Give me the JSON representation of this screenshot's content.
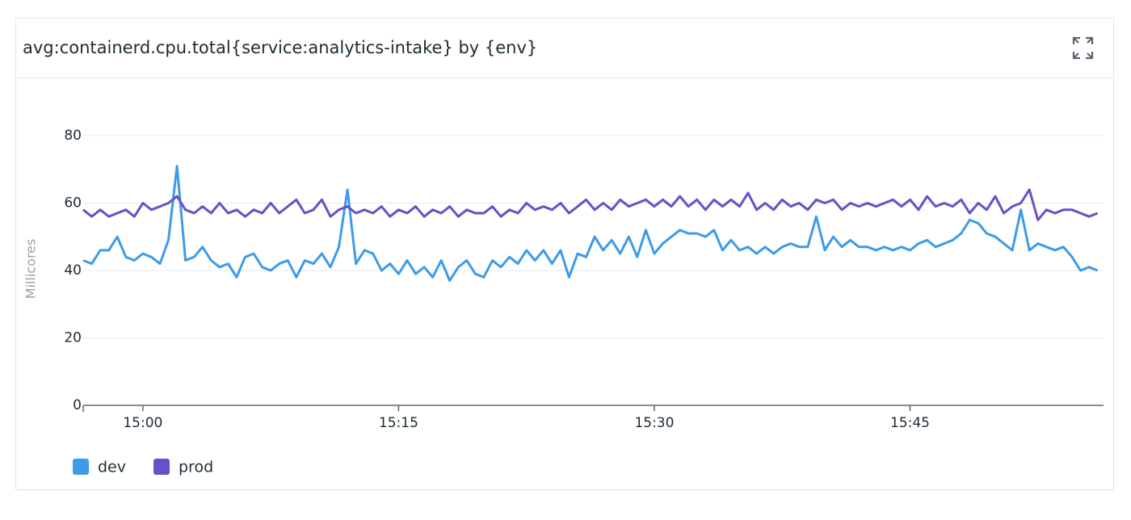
{
  "chart_data": {
    "type": "line",
    "title": "avg:containerd.cpu.total{service:analytics-intake} by {env}",
    "y_label": "Millicores",
    "x": [
      896.5,
      897,
      897.5,
      898,
      898.5,
      899,
      899.5,
      900,
      900.5,
      901,
      901.5,
      902,
      902.5,
      903,
      903.5,
      904,
      904.5,
      905,
      905.5,
      906,
      906.5,
      907,
      907.5,
      908,
      908.5,
      909,
      909.5,
      910,
      910.5,
      911,
      911.5,
      912,
      912.5,
      913,
      913.5,
      914,
      914.5,
      915,
      915.5,
      916,
      916.5,
      917,
      917.5,
      918,
      918.5,
      919,
      919.5,
      920,
      920.5,
      921,
      921.5,
      922,
      922.5,
      923,
      923.5,
      924,
      924.5,
      925,
      925.5,
      926,
      926.5,
      927,
      927.5,
      928,
      928.5,
      929,
      929.5,
      930,
      930.5,
      931,
      931.5,
      932,
      932.5,
      933,
      933.5,
      934,
      934.5,
      935,
      935.5,
      936,
      936.5,
      937,
      937.5,
      938,
      938.5,
      939,
      939.5,
      940,
      940.5,
      941,
      941.5,
      942,
      942.5,
      943,
      943.5,
      944,
      944.5,
      945,
      945.5,
      946,
      946.5,
      947,
      947.5,
      948,
      948.5,
      949,
      949.5,
      950,
      950.5,
      951,
      951.5,
      952,
      952.5,
      953,
      953.5,
      954,
      954.5,
      955,
      955.5,
      956
    ],
    "series": [
      {
        "name": "dev",
        "color": "#3d9be9",
        "values": [
          43,
          42,
          46,
          46,
          50,
          44,
          43,
          45,
          44,
          42,
          49,
          71,
          43,
          44,
          47,
          43,
          41,
          42,
          38,
          44,
          45,
          41,
          40,
          42,
          43,
          38,
          43,
          42,
          45,
          41,
          47,
          64,
          42,
          46,
          45,
          40,
          42,
          39,
          43,
          39,
          41,
          38,
          43,
          37,
          41,
          43,
          39,
          38,
          43,
          41,
          44,
          42,
          46,
          43,
          46,
          42,
          46,
          38,
          45,
          44,
          50,
          46,
          49,
          45,
          50,
          44,
          52,
          45,
          48,
          50,
          52,
          51,
          51,
          50,
          52,
          46,
          49,
          46,
          47,
          45,
          47,
          45,
          47,
          48,
          47,
          47,
          56,
          46,
          50,
          47,
          49,
          47,
          47,
          46,
          47,
          46,
          47,
          46,
          48,
          49,
          47,
          48,
          49,
          51,
          55,
          54,
          51,
          50,
          48,
          46,
          58,
          46,
          48,
          47,
          46,
          47,
          44,
          40,
          41,
          40
        ]
      },
      {
        "name": "prod",
        "color": "#6552c7",
        "values": [
          58,
          56,
          58,
          56,
          57,
          58,
          56,
          60,
          58,
          59,
          60,
          62,
          58,
          57,
          59,
          57,
          60,
          57,
          58,
          56,
          58,
          57,
          60,
          57,
          59,
          61,
          57,
          58,
          61,
          56,
          58,
          59,
          57,
          58,
          57,
          59,
          56,
          58,
          57,
          59,
          56,
          58,
          57,
          59,
          56,
          58,
          57,
          57,
          59,
          56,
          58,
          57,
          60,
          58,
          59,
          58,
          60,
          57,
          59,
          61,
          58,
          60,
          58,
          61,
          59,
          60,
          61,
          59,
          61,
          59,
          62,
          59,
          61,
          58,
          61,
          59,
          61,
          59,
          63,
          58,
          60,
          58,
          61,
          59,
          60,
          58,
          61,
          60,
          61,
          58,
          60,
          59,
          60,
          59,
          60,
          61,
          59,
          61,
          58,
          62,
          59,
          60,
          59,
          61,
          57,
          60,
          58,
          62,
          57,
          59,
          60,
          64,
          55,
          58,
          57,
          58,
          58,
          57,
          56,
          57
        ]
      }
    ],
    "xlim": [
      896.5,
      956.35
    ],
    "xticks": [
      {
        "value": 900,
        "label": "15:00"
      },
      {
        "value": 915,
        "label": "15:15"
      },
      {
        "value": 930,
        "label": "15:30"
      },
      {
        "value": 945,
        "label": "15:45"
      }
    ],
    "ylim": [
      0,
      86.7
    ],
    "yticks": [
      0,
      20,
      40,
      60,
      80
    ],
    "grid": true
  }
}
